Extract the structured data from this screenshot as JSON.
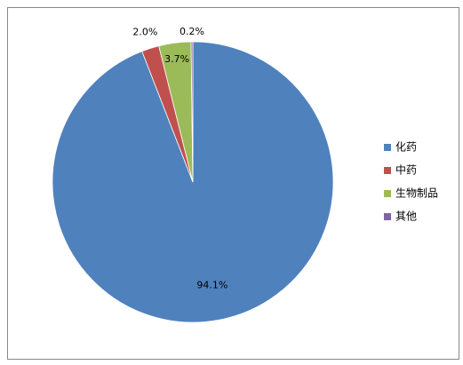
{
  "chart_data": {
    "type": "pie",
    "categories": [
      "化药",
      "中药",
      "生物制品",
      "其他"
    ],
    "values": [
      94.1,
      2.0,
      3.7,
      0.2
    ],
    "value_labels": [
      "94.1%",
      "2.0%",
      "3.7%",
      "0.2%"
    ],
    "colors": [
      "#4f81bd",
      "#c0504d",
      "#9bbb59",
      "#8064a2"
    ],
    "legend": "right"
  }
}
